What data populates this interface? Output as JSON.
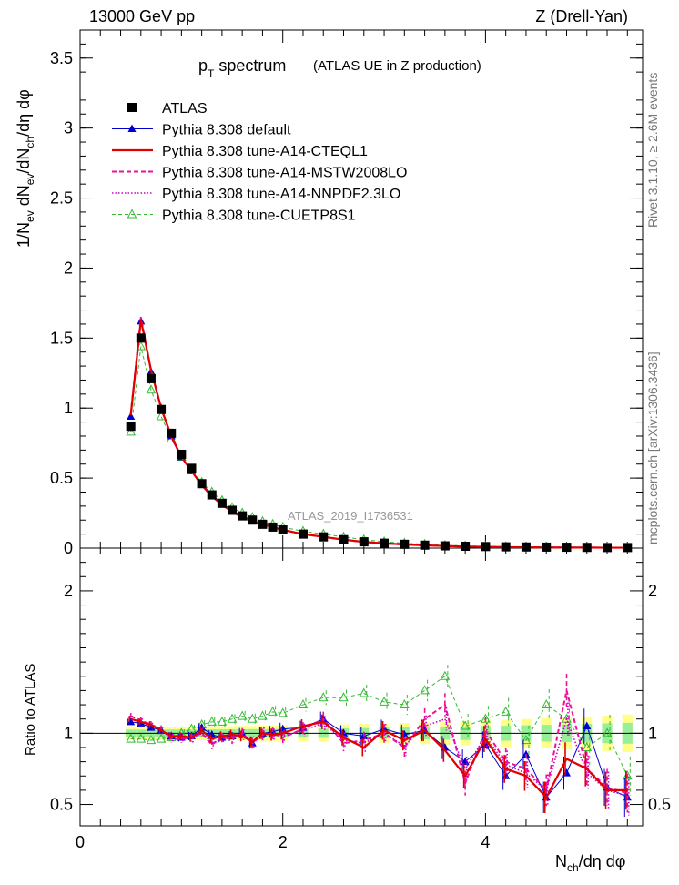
{
  "header": {
    "left": "13000 GeV pp",
    "right": "Z (Drell-Yan)"
  },
  "side_labels": {
    "rivet": "Rivet 3.1.10, ≥ 2.6M events",
    "mcplots": "mcplots.cern.ch [arXiv:1306.3436]"
  },
  "title": {
    "main_p": "p",
    "main_sub": "T",
    "main_rest": " spectrum",
    "paren": "(ATLAS UE in Z production)"
  },
  "analysis_tag": "ATLAS_2019_I1736531",
  "axes": {
    "ylabel_main": "1/Nₑᵥ dNₑᵥ/dNᶜʰ/dη dφ",
    "ylabel_ratio": "Ratio to ATLAS",
    "xlabel": "Nᶜʰ/dη dφ"
  },
  "legend": [
    {
      "label": "ATLAS",
      "color": "#000000",
      "marker": "square"
    },
    {
      "label": "Pythia 8.308 default",
      "color": "#0000cc",
      "marker": "triangle"
    },
    {
      "label": "Pythia 8.308 tune-A14-CTEQL1",
      "color": "#e00000",
      "marker": "line"
    },
    {
      "label": "Pythia 8.308 tune-A14-MSTW2008LO",
      "color": "#ee1199",
      "marker": "dash"
    },
    {
      "label": "Pythia 8.308 tune-A14-NNPDF2.3LO",
      "color": "#cc00cc",
      "marker": "dot"
    },
    {
      "label": "Pythia 8.308 tune-CUETP8S1",
      "color": "#33bb33",
      "marker": "open-triangle"
    }
  ],
  "chart_data": [
    {
      "type": "scatter",
      "panel": "main",
      "xlim": [
        0,
        5.55
      ],
      "ylim": [
        0,
        3.7
      ],
      "yticks": [
        0,
        0.5,
        1,
        1.5,
        2,
        2.5,
        3,
        3.5
      ],
      "ytick_labels": [
        "0",
        "0.5",
        "1",
        "1.5",
        "2",
        "2.5",
        "3",
        "3.5"
      ],
      "x": [
        0.5,
        0.6,
        0.7,
        0.8,
        0.9,
        1.0,
        1.1,
        1.2,
        1.3,
        1.4,
        1.5,
        1.6,
        1.7,
        1.8,
        1.9,
        2.0,
        2.2,
        2.4,
        2.6,
        2.8,
        3.0,
        3.2,
        3.4,
        3.6,
        3.8,
        4.0,
        4.2,
        4.4,
        4.6,
        4.8,
        5.0,
        5.2,
        5.4
      ],
      "series": [
        {
          "name": "ATLAS",
          "values": [
            0.87,
            1.5,
            1.21,
            0.99,
            0.82,
            0.67,
            0.57,
            0.46,
            0.38,
            0.32,
            0.27,
            0.23,
            0.2,
            0.17,
            0.15,
            0.13,
            0.1,
            0.08,
            0.06,
            0.045,
            0.035,
            0.027,
            0.021,
            0.016,
            0.013,
            0.011,
            0.009,
            0.008,
            0.007,
            0.006,
            0.005,
            0.004,
            0.004
          ]
        },
        {
          "name": "Pythia 8.308 default",
          "values": [
            0.94,
            1.62,
            1.26,
            1.0,
            0.8,
            0.65,
            0.55,
            0.46,
            0.38,
            0.32,
            0.27,
            0.23,
            0.2,
            0.17,
            0.15,
            0.13,
            0.1,
            0.08,
            0.06,
            0.045,
            0.035,
            0.027,
            0.021,
            0.016,
            0.012,
            0.009,
            0.007,
            0.006,
            0.005,
            0.004,
            0.004,
            0.003,
            0.003
          ]
        },
        {
          "name": "Pythia 8.308 tune-A14-CTEQL1",
          "values": [
            0.95,
            1.63,
            1.27,
            1.0,
            0.8,
            0.65,
            0.55,
            0.45,
            0.37,
            0.31,
            0.26,
            0.22,
            0.19,
            0.17,
            0.15,
            0.13,
            0.1,
            0.08,
            0.06,
            0.044,
            0.034,
            0.026,
            0.02,
            0.015,
            0.011,
            0.009,
            0.007,
            0.006,
            0.005,
            0.004,
            0.004,
            0.003,
            0.003
          ]
        },
        {
          "name": "Pythia 8.308 tune-A14-MSTW2008LO",
          "values": [
            0.96,
            1.65,
            1.27,
            1.0,
            0.79,
            0.65,
            0.55,
            0.45,
            0.37,
            0.31,
            0.26,
            0.22,
            0.19,
            0.17,
            0.15,
            0.13,
            0.1,
            0.08,
            0.06,
            0.044,
            0.034,
            0.026,
            0.02,
            0.015,
            0.011,
            0.009,
            0.007,
            0.006,
            0.005,
            0.004,
            0.004,
            0.003,
            0.003
          ]
        },
        {
          "name": "Pythia 8.308 tune-A14-NNPDF2.3LO",
          "values": [
            0.95,
            1.64,
            1.26,
            1.0,
            0.79,
            0.65,
            0.55,
            0.45,
            0.37,
            0.31,
            0.26,
            0.22,
            0.19,
            0.17,
            0.15,
            0.13,
            0.1,
            0.08,
            0.06,
            0.044,
            0.034,
            0.026,
            0.02,
            0.015,
            0.011,
            0.009,
            0.007,
            0.006,
            0.005,
            0.004,
            0.004,
            0.003,
            0.003
          ]
        },
        {
          "name": "Pythia 8.308 tune-CUETP8S1",
          "values": [
            0.83,
            1.44,
            1.13,
            0.94,
            0.78,
            0.65,
            0.56,
            0.47,
            0.4,
            0.34,
            0.29,
            0.25,
            0.22,
            0.19,
            0.17,
            0.15,
            0.12,
            0.1,
            0.08,
            0.06,
            0.045,
            0.035,
            0.027,
            0.02,
            0.016,
            0.013,
            0.01,
            0.009,
            0.007,
            0.006,
            0.005,
            0.004,
            0.004
          ]
        }
      ]
    },
    {
      "type": "line",
      "panel": "ratio",
      "xlim": [
        0,
        5.55
      ],
      "ylim": [
        0.35,
        2.3
      ],
      "xticks": [
        0,
        2,
        4
      ],
      "xtick_labels": [
        "0",
        "2",
        "4"
      ],
      "yticks": [
        0.5,
        1,
        2
      ],
      "ytick_labels": [
        "0.5",
        "1",
        "2"
      ],
      "x": [
        0.5,
        0.6,
        0.7,
        0.8,
        0.9,
        1.0,
        1.1,
        1.2,
        1.3,
        1.4,
        1.5,
        1.6,
        1.7,
        1.8,
        1.9,
        2.0,
        2.2,
        2.4,
        2.6,
        2.8,
        3.0,
        3.2,
        3.4,
        3.6,
        3.8,
        4.0,
        4.2,
        4.4,
        4.6,
        4.8,
        5.0,
        5.2,
        5.4
      ],
      "series": [
        {
          "name": "Pythia 8.308 default",
          "values": [
            1.08,
            1.07,
            1.04,
            1.02,
            0.98,
            0.97,
            0.98,
            1.04,
            0.99,
            0.97,
            0.98,
            1.0,
            0.93,
            1.0,
            1.01,
            1.03,
            1.04,
            1.1,
            1.0,
            0.98,
            1.03,
            0.99,
            1.02,
            0.9,
            0.8,
            0.92,
            0.7,
            0.85,
            0.55,
            0.72,
            1.05,
            0.62,
            0.55
          ]
        },
        {
          "name": "Pythia 8.308 tune-A14-CTEQL1",
          "values": [
            1.1,
            1.08,
            1.06,
            1.02,
            0.98,
            0.98,
            0.97,
            1.02,
            0.96,
            0.98,
            0.99,
            0.98,
            0.94,
            1.0,
            0.99,
            1.0,
            1.05,
            1.08,
            0.97,
            0.9,
            1.02,
            0.95,
            1.02,
            0.88,
            0.7,
            0.96,
            0.75,
            0.7,
            0.55,
            0.82,
            0.75,
            0.6,
            0.6
          ]
        },
        {
          "name": "Pythia 8.308 tune-A14-MSTW2008LO",
          "values": [
            1.12,
            1.09,
            1.06,
            1.03,
            0.96,
            0.96,
            0.97,
            1.0,
            0.92,
            0.97,
            0.96,
            1.0,
            0.93,
            0.99,
            1.0,
            0.97,
            1.03,
            1.1,
            0.93,
            0.95,
            1.0,
            0.9,
            1.1,
            1.2,
            0.65,
            1.02,
            0.8,
            0.75,
            0.6,
            1.3,
            0.75,
            0.62,
            0.58
          ]
        },
        {
          "name": "Pythia 8.308 tune-A14-NNPDF2.3LO",
          "values": [
            1.1,
            1.08,
            1.05,
            1.02,
            0.97,
            0.97,
            0.96,
            1.01,
            0.93,
            0.96,
            0.97,
            0.99,
            0.94,
            1.0,
            0.99,
            0.98,
            1.02,
            1.07,
            0.95,
            0.93,
            1.0,
            0.91,
            1.05,
            1.1,
            0.75,
            0.98,
            0.78,
            0.72,
            0.6,
            1.1,
            0.72,
            0.6,
            0.56
          ]
        },
        {
          "name": "Pythia 8.308 tune-CUETP8S1",
          "values": [
            0.96,
            0.96,
            0.95,
            0.96,
            0.97,
            1.0,
            1.03,
            1.06,
            1.08,
            1.08,
            1.1,
            1.12,
            1.1,
            1.12,
            1.15,
            1.14,
            1.2,
            1.25,
            1.25,
            1.28,
            1.22,
            1.2,
            1.3,
            1.4,
            1.05,
            1.1,
            1.15,
            0.95,
            1.2,
            1.1,
            0.9,
            1.0,
            0.7
          ]
        }
      ]
    }
  ]
}
